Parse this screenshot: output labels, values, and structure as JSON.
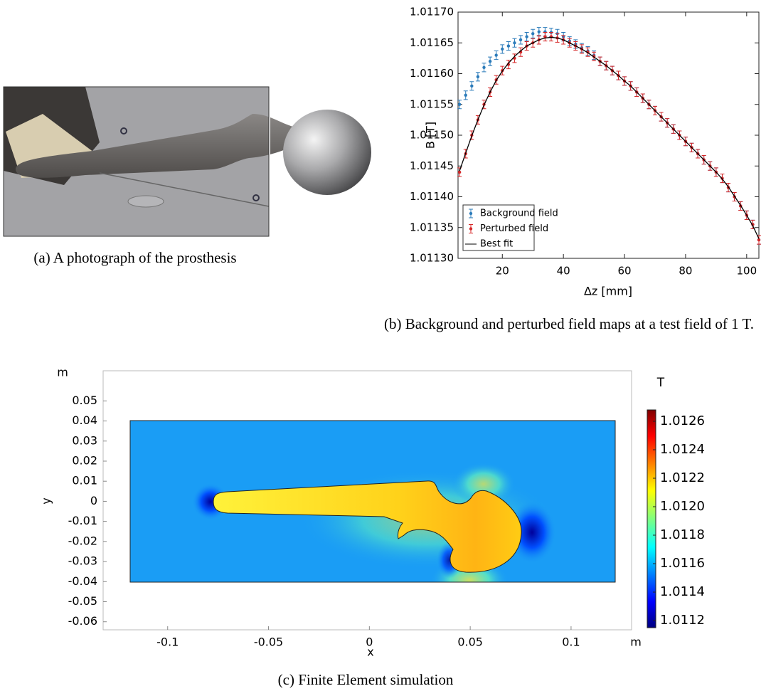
{
  "photo": {
    "caption": "(a) A photograph of the prosthesis"
  },
  "chart_data": [
    {
      "type": "line",
      "caption": "(b) Background and perturbed field maps at a test field of 1 T.",
      "xlabel": "Δz [mm]",
      "ylabel": "B [T]",
      "xlim": [
        5.5,
        104
      ],
      "ylim": [
        1.0113,
        1.0117
      ],
      "xticks": [
        20,
        40,
        60,
        80,
        100
      ],
      "yticks": [
        {
          "value": 1.0113,
          "label": "1.01130"
        },
        1.01135,
        {
          "value": 1.0114,
          "label": "1.01140"
        },
        1.01145,
        {
          "value": 1.0115,
          "label": "1.01150"
        },
        1.01155,
        {
          "value": 1.0116,
          "label": "1.01160"
        },
        1.01165,
        {
          "value": 1.0117,
          "label": "1.01170"
        }
      ],
      "legend": "lower left",
      "x": [
        6,
        8,
        10,
        12,
        14,
        16,
        18,
        20,
        22,
        24,
        26,
        28,
        30,
        32,
        34,
        36,
        38,
        40,
        42,
        44,
        46,
        48,
        50,
        52,
        54,
        56,
        58,
        60,
        62,
        64,
        66,
        68,
        70,
        72,
        74,
        76,
        78,
        80,
        82,
        84,
        86,
        88,
        90,
        92,
        94,
        96,
        98,
        100,
        102,
        104
      ],
      "series": [
        {
          "name": "Background field",
          "color": "#2b7bba",
          "kind": "errorbar",
          "error": 7e-06,
          "values": [
            1.01155,
            1.011565,
            1.01158,
            1.011595,
            1.01161,
            1.01162,
            1.01163,
            1.01164,
            1.011645,
            1.01165,
            1.011655,
            1.01166,
            1.011665,
            1.011668,
            1.011668,
            1.011667,
            1.011665,
            1.01166,
            1.011653,
            1.011648,
            1.011642,
            1.011637,
            1.01163,
            1.01162,
            1.011613,
            1.011605,
            1.011597,
            1.011588,
            1.01158,
            1.01157,
            1.01156,
            1.01155,
            1.01154,
            1.01153,
            1.01152,
            1.01151,
            1.0115,
            1.01149,
            1.01148,
            1.01147,
            1.01146,
            1.01145,
            1.01144,
            1.01143,
            1.011415,
            1.0114,
            1.011385,
            1.01137,
            1.011355,
            1.01133
          ]
        },
        {
          "name": "Perturbed field",
          "color": "#d62728",
          "kind": "errorbar",
          "error": 7e-06,
          "values": [
            1.01144,
            1.01147,
            1.0115,
            1.011525,
            1.01155,
            1.01157,
            1.01159,
            1.011605,
            1.011615,
            1.011625,
            1.011635,
            1.011645,
            1.01165,
            1.011655,
            1.01166,
            1.01166,
            1.011658,
            1.011655,
            1.01165,
            1.011645,
            1.01164,
            1.011635,
            1.011628,
            1.01162,
            1.011613,
            1.011605,
            1.011597,
            1.011588,
            1.01158,
            1.01157,
            1.01156,
            1.01155,
            1.01154,
            1.01153,
            1.01152,
            1.01151,
            1.0115,
            1.01149,
            1.01148,
            1.01147,
            1.01146,
            1.01145,
            1.01144,
            1.01143,
            1.011415,
            1.0114,
            1.011385,
            1.01137,
            1.011355,
            1.01133
          ]
        },
        {
          "name": "Best fit",
          "color": "#000000",
          "kind": "line",
          "values": [
            1.011442,
            1.011471,
            1.011499,
            1.011525,
            1.011549,
            1.01157,
            1.011589,
            1.011604,
            1.011617,
            1.011628,
            1.011637,
            1.011645,
            1.01165,
            1.011655,
            1.011658,
            1.011659,
            1.011658,
            1.011655,
            1.01165,
            1.011645,
            1.01164,
            1.011634,
            1.011627,
            1.01162,
            1.011613,
            1.011605,
            1.011597,
            1.011588,
            1.01158,
            1.01157,
            1.01156,
            1.01155,
            1.01154,
            1.01153,
            1.01152,
            1.01151,
            1.0115,
            1.01149,
            1.01148,
            1.01147,
            1.01146,
            1.01145,
            1.01144,
            1.011429,
            1.011416,
            1.011401,
            1.011386,
            1.01137,
            1.011353,
            1.011332
          ]
        }
      ]
    },
    {
      "type": "heatmap",
      "caption": "(c) Finite Element simulation",
      "xlabel": "x",
      "ylabel": "y",
      "x_unit": "m",
      "y_unit": "m",
      "xlim": [
        -0.132,
        0.13
      ],
      "ylim": [
        -0.064,
        0.065
      ],
      "xticks": [
        -0.1,
        -0.05,
        0,
        0.05,
        0.1
      ],
      "yticks": [
        0.05,
        0.04,
        0.03,
        0.02,
        0.01,
        0,
        -0.01,
        -0.02,
        -0.03,
        -0.04,
        -0.05,
        -0.06
      ],
      "colormap": "jet",
      "colorbar_unit": "T",
      "colorbar_lim": [
        1.01115,
        1.01268
      ],
      "colorbar_ticks": [
        1.0126,
        1.0124,
        1.0122,
        {
          "value": 1.012,
          "label": "1.0120"
        },
        1.0118,
        1.0116,
        1.0114,
        1.0112
      ]
    }
  ]
}
